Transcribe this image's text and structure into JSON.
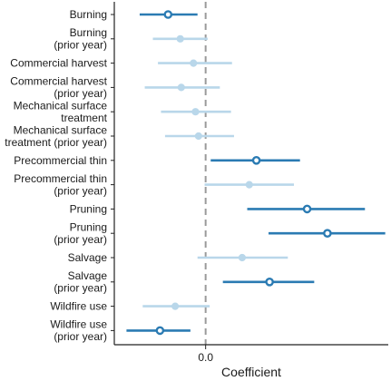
{
  "chart_data": {
    "type": "scatter",
    "subtype": "coefficient-plot-with-intervals",
    "title": "",
    "xlabel": "Coefficient",
    "ylabel": "",
    "xlim": [
      -0.09,
      0.18
    ],
    "x_ticks": [
      0.0
    ],
    "x_tick_labels": [
      "0.0"
    ],
    "reference_line": {
      "x": 0.0,
      "style": "dashed",
      "color": "#9a9a9a"
    },
    "grid": false,
    "legend": "none",
    "colors": {
      "significant": "#2b7bb3",
      "non_significant": "#b9d7ea"
    },
    "categories": [
      {
        "label": [
          "Burning"
        ],
        "estimate": -0.037,
        "lower": -0.065,
        "upper": -0.008,
        "significant": true
      },
      {
        "label": [
          "Burning",
          "(prior year)"
        ],
        "estimate": -0.025,
        "lower": -0.052,
        "upper": 0.002,
        "significant": false
      },
      {
        "label": [
          "Commercial harvest"
        ],
        "estimate": -0.012,
        "lower": -0.047,
        "upper": 0.026,
        "significant": false
      },
      {
        "label": [
          "Commercial harvest",
          "(prior year)"
        ],
        "estimate": -0.024,
        "lower": -0.06,
        "upper": 0.014,
        "significant": false
      },
      {
        "label": [
          "Mechanical surface",
          "treatment"
        ],
        "estimate": -0.01,
        "lower": -0.044,
        "upper": 0.025,
        "significant": false
      },
      {
        "label": [
          "Mechanical surface",
          "treatment (prior year)"
        ],
        "estimate": -0.007,
        "lower": -0.04,
        "upper": 0.028,
        "significant": false
      },
      {
        "label": [
          "Precommercial thin"
        ],
        "estimate": 0.05,
        "lower": 0.005,
        "upper": 0.093,
        "significant": true
      },
      {
        "label": [
          "Precommercial thin",
          "(prior year)"
        ],
        "estimate": 0.043,
        "lower": -0.001,
        "upper": 0.087,
        "significant": false
      },
      {
        "label": [
          "Pruning"
        ],
        "estimate": 0.1,
        "lower": 0.041,
        "upper": 0.157,
        "significant": true
      },
      {
        "label": [
          "Pruning",
          "(prior year)"
        ],
        "estimate": 0.12,
        "lower": 0.062,
        "upper": 0.177,
        "significant": true
      },
      {
        "label": [
          "Salvage"
        ],
        "estimate": 0.036,
        "lower": -0.008,
        "upper": 0.081,
        "significant": false
      },
      {
        "label": [
          "Salvage",
          "(prior year)"
        ],
        "estimate": 0.063,
        "lower": 0.017,
        "upper": 0.107,
        "significant": true
      },
      {
        "label": [
          "Wildfire use"
        ],
        "estimate": -0.03,
        "lower": -0.062,
        "upper": 0.004,
        "significant": false
      },
      {
        "label": [
          "Wildfire use",
          "(prior year)"
        ],
        "estimate": -0.045,
        "lower": -0.078,
        "upper": -0.015,
        "significant": true
      }
    ]
  }
}
